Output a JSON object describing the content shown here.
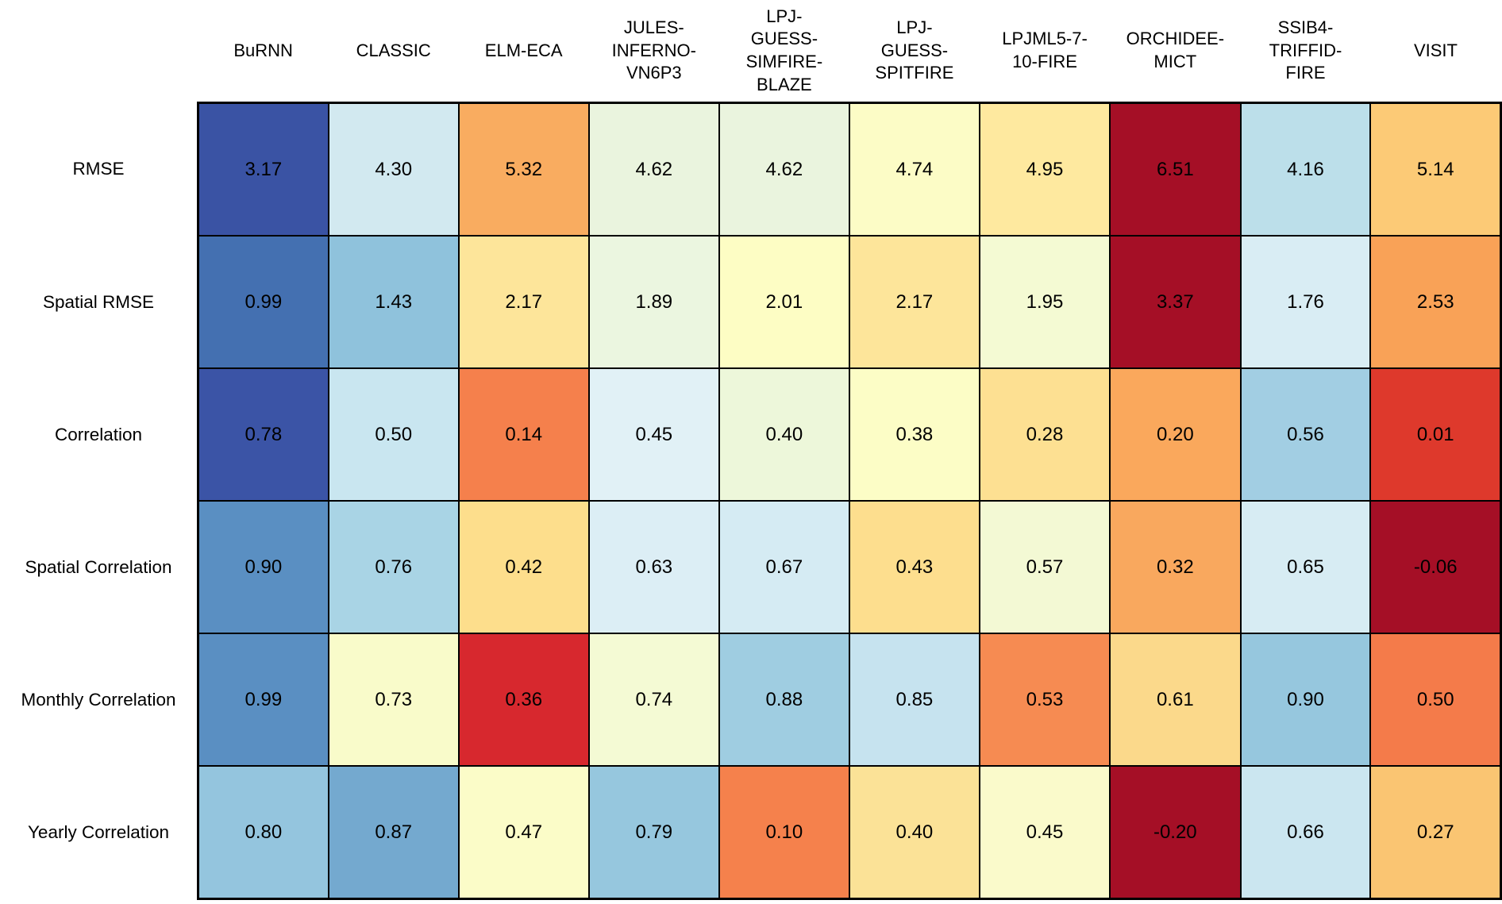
{
  "page": {
    "background": "#ffffff",
    "text_color": "#000000",
    "grid_color": "#000000"
  },
  "chart_data": {
    "type": "heatmap",
    "title": "",
    "xlabel": "",
    "ylabel": "",
    "legend": "none",
    "grid": "black cell borders",
    "columns": [
      {
        "name": "BuRNN",
        "lines": [
          "BuRNN"
        ]
      },
      {
        "name": "CLASSIC",
        "lines": [
          "CLASSIC"
        ]
      },
      {
        "name": "ELM-ECA",
        "lines": [
          "ELM-ECA"
        ]
      },
      {
        "name": "JULES-INFERNO-VN6P3",
        "lines": [
          "JULES-",
          "INFERNO-",
          "VN6P3"
        ]
      },
      {
        "name": "LPJ-GUESS-SIMFIRE-BLAZE",
        "lines": [
          "LPJ-",
          "GUESS-",
          "SIMFIRE-",
          "BLAZE"
        ]
      },
      {
        "name": "LPJ-GUESS-SPITFIRE",
        "lines": [
          "LPJ-",
          "GUESS-",
          "SPITFIRE"
        ]
      },
      {
        "name": "LPJML5-7-10-FIRE",
        "lines": [
          "LPJML5-7-",
          "10-FIRE"
        ]
      },
      {
        "name": "ORCHIDEE-MICT",
        "lines": [
          "ORCHIDEE-",
          "MICT"
        ]
      },
      {
        "name": "SSIB4-TRIFFID-FIRE",
        "lines": [
          "SSIB4-",
          "TRIFFID-",
          "FIRE"
        ]
      },
      {
        "name": "VISIT",
        "lines": [
          "VISIT"
        ]
      }
    ],
    "series": [
      {
        "label": "RMSE",
        "values": [
          "3.17",
          "4.30",
          "5.32",
          "4.62",
          "4.62",
          "4.74",
          "4.95",
          "6.51",
          "4.16",
          "5.14"
        ],
        "colors": [
          "#3a53a4",
          "#d2e9f0",
          "#f9ac60",
          "#eaf4de",
          "#eaf4de",
          "#fcfcc6",
          "#fee99f",
          "#a50f26",
          "#bcdfea",
          "#fcca76"
        ]
      },
      {
        "label": "Spatial RMSE",
        "values": [
          "0.99",
          "1.43",
          "2.17",
          "1.89",
          "2.01",
          "2.17",
          "1.95",
          "3.37",
          "1.76",
          "2.53"
        ],
        "colors": [
          "#4470b1",
          "#8fc2dc",
          "#fde59a",
          "#ebf6e0",
          "#fdfdc4",
          "#fde59a",
          "#f4fad3",
          "#a50f26",
          "#d9edf4",
          "#f9a257"
        ]
      },
      {
        "label": "Correlation",
        "values": [
          "0.78",
          "0.50",
          "0.14",
          "0.45",
          "0.40",
          "0.38",
          "0.28",
          "0.20",
          "0.56",
          "0.01"
        ],
        "colors": [
          "#3b54a6",
          "#c9e6f0",
          "#f5804c",
          "#e1f1f6",
          "#edf7da",
          "#fcfdc6",
          "#fde092",
          "#faa85c",
          "#a2cee3",
          "#de392c"
        ]
      },
      {
        "label": "Spatial Correlation",
        "values": [
          "0.90",
          "0.76",
          "0.42",
          "0.63",
          "0.67",
          "0.43",
          "0.57",
          "0.32",
          "0.65",
          "-0.06"
        ],
        "colors": [
          "#5a8fc2",
          "#a9d4e5",
          "#fdde8c",
          "#dceef5",
          "#d5ebf3",
          "#fdde8e",
          "#f3f9d4",
          "#f9a85e",
          "#d7ecf3",
          "#a50f26"
        ]
      },
      {
        "label": "Monthly Correlation",
        "values": [
          "0.99",
          "0.73",
          "0.36",
          "0.74",
          "0.88",
          "0.85",
          "0.53",
          "0.61",
          "0.90",
          "0.50"
        ],
        "colors": [
          "#5a8fc2",
          "#f9fbca",
          "#d7282e",
          "#f4fad4",
          "#9fcde1",
          "#c6e3ef",
          "#f68b52",
          "#fbd98b",
          "#96c7de",
          "#f47b4a"
        ]
      },
      {
        "label": "Yearly Correlation",
        "values": [
          "0.80",
          "0.87",
          "0.47",
          "0.79",
          "0.10",
          "0.40",
          "0.45",
          "-0.20",
          "0.66",
          "0.27"
        ],
        "colors": [
          "#94c5de",
          "#74a9cf",
          "#fbfcc8",
          "#96c7de",
          "#f5814c",
          "#fbe297",
          "#fafacb",
          "#a50f26",
          "#cbe6f0",
          "#fac572"
        ]
      }
    ],
    "colormap_note": {
      "low_end_blue": "#3a53a4",
      "mid_yellow": "#fcfcc6",
      "high_end_red": "#a50f26"
    }
  }
}
